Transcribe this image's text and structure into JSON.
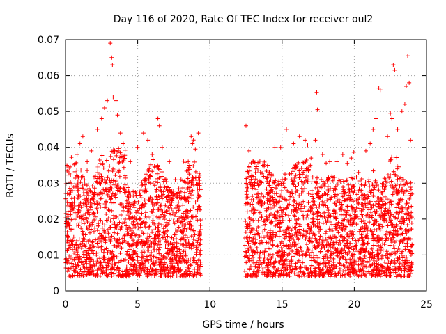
{
  "chart_data": {
    "type": "scatter",
    "title": "Day 116 of 2020, Rate Of TEC Index for receiver oul2",
    "xlabel": "GPS time / hours",
    "ylabel": "ROTI / TECUs",
    "xlim": [
      0,
      25
    ],
    "ylim": [
      0,
      0.07
    ],
    "x_ticks": [
      "0",
      "5",
      "10",
      "15",
      "20",
      "25"
    ],
    "y_ticks": [
      "0",
      "0.01",
      "0.02",
      "0.03",
      "0.04",
      "0.05",
      "0.06",
      "0.07"
    ],
    "x_tick_values": [
      0,
      5,
      10,
      15,
      20,
      25
    ],
    "y_tick_values": [
      0,
      0.01,
      0.02,
      0.03,
      0.04,
      0.05,
      0.06,
      0.07
    ],
    "grid": true,
    "marker": "+",
    "series_color": "#ff0000",
    "data_gap": [
      9.4,
      12.4
    ],
    "series": [
      {
        "points": [
          [
            0.1,
            0.035
          ],
          [
            0.3,
            0.028
          ],
          [
            0.5,
            0.024
          ],
          [
            0.8,
            0.038
          ],
          [
            1.0,
            0.041
          ],
          [
            1.2,
            0.043
          ],
          [
            1.5,
            0.036
          ],
          [
            1.8,
            0.039
          ],
          [
            2.2,
            0.045
          ],
          [
            2.5,
            0.048
          ],
          [
            2.7,
            0.051
          ],
          [
            2.9,
            0.053
          ],
          [
            3.1,
            0.069
          ],
          [
            3.2,
            0.065
          ],
          [
            3.25,
            0.063
          ],
          [
            3.3,
            0.054
          ],
          [
            3.5,
            0.053
          ],
          [
            3.6,
            0.049
          ],
          [
            3.8,
            0.044
          ],
          [
            4.0,
            0.041
          ],
          [
            4.5,
            0.036
          ],
          [
            5.0,
            0.04
          ],
          [
            5.4,
            0.044
          ],
          [
            5.7,
            0.042
          ],
          [
            6.0,
            0.038
          ],
          [
            6.4,
            0.048
          ],
          [
            6.5,
            0.046
          ],
          [
            6.7,
            0.04
          ],
          [
            7.2,
            0.036
          ],
          [
            7.6,
            0.031
          ],
          [
            8.0,
            0.031
          ],
          [
            8.5,
            0.036
          ],
          [
            8.7,
            0.043
          ],
          [
            8.8,
            0.041
          ],
          [
            9.2,
            0.044
          ],
          [
            12.5,
            0.046
          ],
          [
            12.7,
            0.039
          ],
          [
            13.0,
            0.036
          ],
          [
            13.5,
            0.033
          ],
          [
            14.0,
            0.035
          ],
          [
            14.5,
            0.04
          ],
          [
            14.9,
            0.04
          ],
          [
            15.3,
            0.045
          ],
          [
            15.8,
            0.041
          ],
          [
            16.2,
            0.043
          ],
          [
            16.6,
            0.042
          ],
          [
            17.0,
            0.037
          ],
          [
            17.3,
            0.042
          ],
          [
            17.4,
            0.0553
          ],
          [
            17.45,
            0.0505
          ],
          [
            17.8,
            0.038
          ],
          [
            18.3,
            0.036
          ],
          [
            18.8,
            0.036
          ],
          [
            19.2,
            0.038
          ],
          [
            19.8,
            0.037
          ],
          [
            20.3,
            0.033
          ],
          [
            20.8,
            0.039
          ],
          [
            21.1,
            0.041
          ],
          [
            21.3,
            0.045
          ],
          [
            21.5,
            0.048
          ],
          [
            21.7,
            0.0565
          ],
          [
            21.8,
            0.056
          ],
          [
            22.3,
            0.043
          ],
          [
            22.5,
            0.0495
          ],
          [
            22.6,
            0.048
          ],
          [
            22.7,
            0.063
          ],
          [
            22.8,
            0.0615
          ],
          [
            23.0,
            0.045
          ],
          [
            23.3,
            0.05
          ],
          [
            23.5,
            0.052
          ],
          [
            23.6,
            0.057
          ],
          [
            23.7,
            0.0655
          ],
          [
            23.8,
            0.058
          ],
          [
            23.9,
            0.042
          ]
        ]
      }
    ]
  }
}
